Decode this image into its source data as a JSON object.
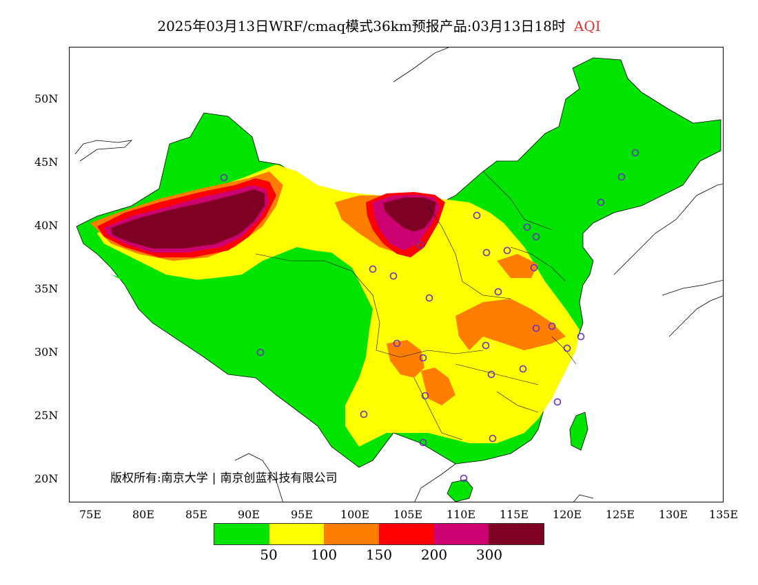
{
  "title": {
    "main": "2025年03月13日WRF/cmaq模式36km预报产品:03月13日18时",
    "product": "AQI"
  },
  "axes": {
    "y_ticks": [
      "50N",
      "45N",
      "40N",
      "35N",
      "30N",
      "25N",
      "20N"
    ],
    "x_ticks": [
      "75E",
      "80E",
      "85E",
      "90E",
      "95E",
      "100E",
      "105E",
      "110E",
      "115E",
      "120E",
      "125E",
      "130E",
      "135E"
    ]
  },
  "legend": {
    "colors": [
      "#00e400",
      "#ffff00",
      "#ff7e00",
      "#ff0000",
      "#cc0070",
      "#7e0023"
    ],
    "labels": [
      "50",
      "100",
      "150",
      "200",
      "300"
    ]
  },
  "copyright": {
    "left": "版权所有:南京大学",
    "right": "南京创蓝科技有限公司"
  }
}
